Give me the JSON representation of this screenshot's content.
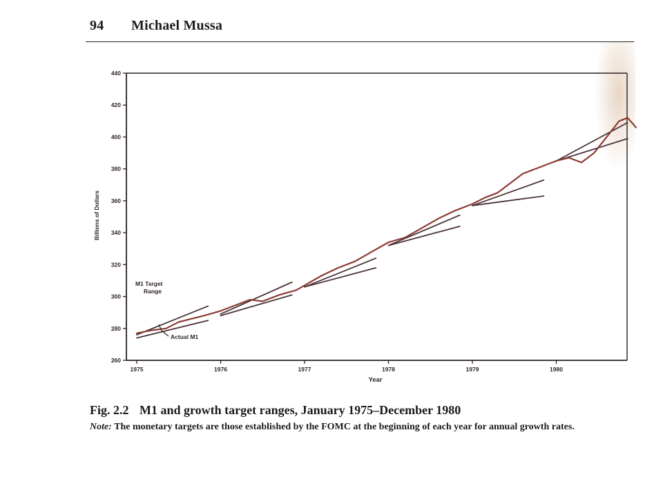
{
  "page": {
    "page_number": "94",
    "author": "Michael Mussa"
  },
  "caption": {
    "figure_number": "Fig. 2.2",
    "title": "M1 and growth target ranges, January 1975–December 1980",
    "note_label": "Note:",
    "note_text": "The monetary targets are those established by the FOMC at the beginning of each year for annual growth rates."
  },
  "colors": {
    "actual": "#8b3a34",
    "target": "#4a3236",
    "axis": "#2a1f22"
  },
  "chart_data": {
    "type": "line",
    "xlabel": "Year",
    "ylabel": "Billions of Dollars",
    "xlim": [
      1975,
      1981
    ],
    "ylim": [
      260,
      440
    ],
    "x_ticks": [
      1975,
      1976,
      1977,
      1978,
      1979,
      1980
    ],
    "x_tick_labels": [
      "1975",
      "1976",
      "1977",
      "1978",
      "1979",
      "1980"
    ],
    "y_ticks": [
      260,
      280,
      300,
      320,
      340,
      360,
      380,
      400,
      420,
      440
    ],
    "y_tick_labels": [
      "260",
      "280",
      "300",
      "320",
      "340",
      "360",
      "380",
      "400",
      "420",
      "440"
    ],
    "annotations": [
      {
        "id": "target",
        "text": [
          "M1 Target",
          "Range"
        ]
      },
      {
        "id": "actual",
        "text": [
          "Actual M1"
        ]
      }
    ],
    "series": [
      {
        "name": "Actual M1",
        "x": [
          1975.0,
          1975.2,
          1975.35,
          1975.5,
          1975.8,
          1976.0,
          1976.2,
          1976.35,
          1976.5,
          1976.7,
          1976.9,
          1977.0,
          1977.2,
          1977.4,
          1977.6,
          1977.8,
          1978.0,
          1978.2,
          1978.4,
          1978.6,
          1978.8,
          1979.0,
          1979.15,
          1979.3,
          1979.45,
          1979.6,
          1979.8,
          1980.0,
          1980.15,
          1980.3,
          1980.45,
          1980.6,
          1980.75,
          1980.85,
          1980.95
        ],
        "y": [
          277,
          279,
          280,
          284,
          288,
          291,
          295,
          298,
          297,
          301,
          304,
          307,
          313,
          318,
          322,
          328,
          334,
          337,
          343,
          349,
          354,
          358,
          362,
          365,
          371,
          377,
          381,
          385,
          387,
          384,
          390,
          400,
          410,
          412,
          406
        ]
      }
    ],
    "target_ranges": [
      {
        "period": "1975",
        "lower": [
          [
            1975.0,
            274
          ],
          [
            1975.85,
            285
          ]
        ],
        "upper": [
          [
            1975.0,
            276
          ],
          [
            1975.85,
            294
          ]
        ]
      },
      {
        "period": "1976",
        "lower": [
          [
            1976.0,
            288
          ],
          [
            1976.85,
            301
          ]
        ],
        "upper": [
          [
            1976.0,
            289
          ],
          [
            1976.85,
            309
          ]
        ]
      },
      {
        "period": "1977",
        "lower": [
          [
            1977.0,
            306
          ],
          [
            1977.85,
            318
          ]
        ],
        "upper": [
          [
            1977.0,
            306
          ],
          [
            1977.85,
            324
          ]
        ]
      },
      {
        "period": "1978",
        "lower": [
          [
            1978.0,
            332
          ],
          [
            1978.85,
            344
          ]
        ],
        "upper": [
          [
            1978.0,
            332
          ],
          [
            1978.85,
            351
          ]
        ]
      },
      {
        "period": "1979",
        "lower": [
          [
            1979.0,
            357
          ],
          [
            1979.85,
            363
          ]
        ],
        "upper": [
          [
            1979.0,
            357
          ],
          [
            1979.85,
            373
          ]
        ]
      },
      {
        "period": "1980",
        "lower": [
          [
            1980.0,
            385
          ],
          [
            1980.85,
            399
          ]
        ],
        "upper": [
          [
            1980.0,
            385
          ],
          [
            1980.85,
            409
          ]
        ]
      }
    ]
  }
}
